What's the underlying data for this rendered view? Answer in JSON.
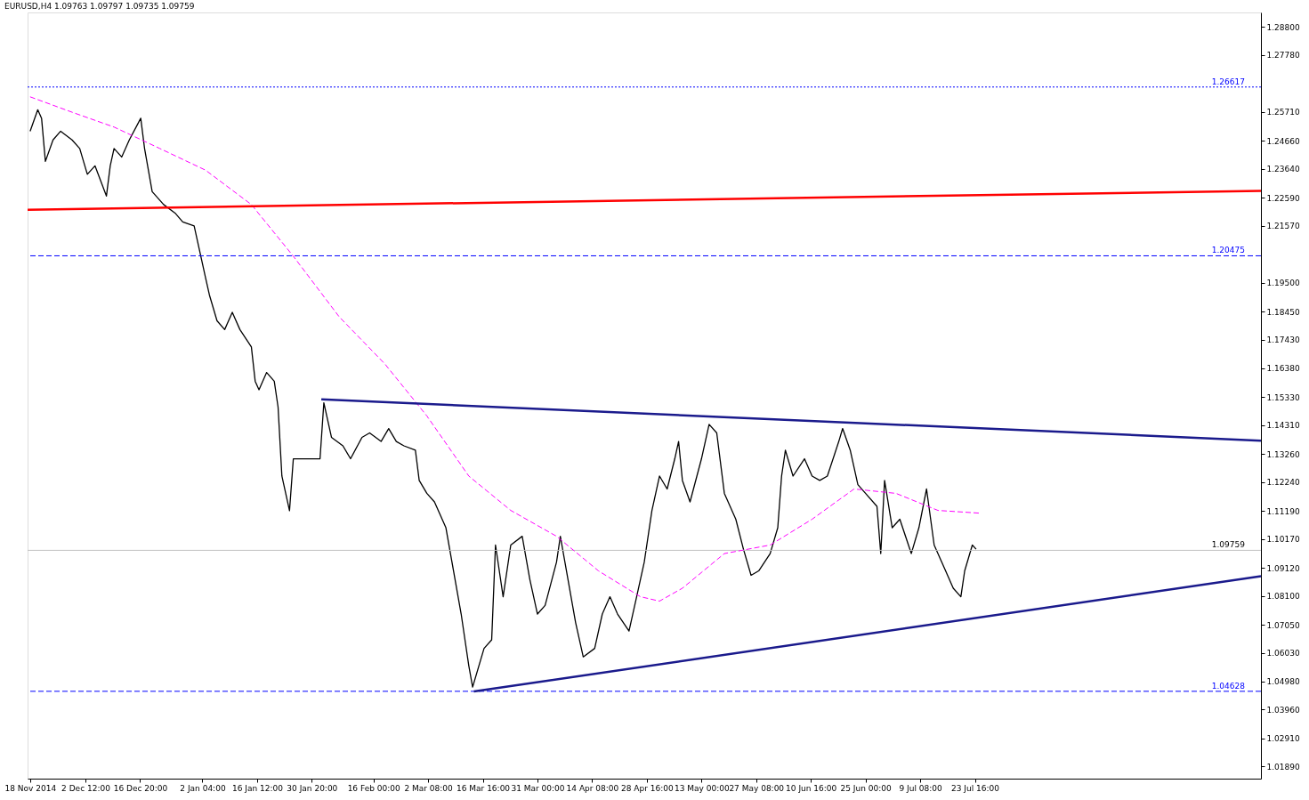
{
  "chart_data": {
    "type": "line",
    "title": "EURUSD,H4  1.09763 1.09797 1.09735 1.09759",
    "xlim": [
      "2014-11-17T08:00",
      "2015-10-06T16:00"
    ],
    "ylim": [
      1.0145,
      1.2933
    ],
    "xticks": [
      {
        "value": "2014-11-18T00:00",
        "label": "18 Nov 2014"
      },
      {
        "value": "2014-12-02T12:00",
        "label": "2 Dec 12:00"
      },
      {
        "value": "2014-12-16T20:00",
        "label": "16 Dec 20:00"
      },
      {
        "value": "2015-01-02T04:00",
        "label": "2 Jan 04:00"
      },
      {
        "value": "2015-01-16T12:00",
        "label": "16 Jan 12:00"
      },
      {
        "value": "2015-01-30T20:00",
        "label": "30 Jan 20:00"
      },
      {
        "value": "2015-02-16T00:00",
        "label": "16 Feb 00:00"
      },
      {
        "value": "2015-03-02T08:00",
        "label": "2 Mar 08:00"
      },
      {
        "value": "2015-03-16T16:00",
        "label": "16 Mar 16:00"
      },
      {
        "value": "2015-03-31T00:00",
        "label": "31 Mar 00:00"
      },
      {
        "value": "2015-04-14T08:00",
        "label": "14 Apr 08:00"
      },
      {
        "value": "2015-04-28T16:00",
        "label": "28 Apr 16:00"
      },
      {
        "value": "2015-05-13T00:00",
        "label": "13 May 00:00"
      },
      {
        "value": "2015-05-27T08:00",
        "label": "27 May 08:00"
      },
      {
        "value": "2015-06-10T16:00",
        "label": "10 Jun 16:00"
      },
      {
        "value": "2015-06-25T00:00",
        "label": "25 Jun 00:00"
      },
      {
        "value": "2015-07-09T08:00",
        "label": "9 Jul 08:00"
      },
      {
        "value": "2015-07-23T16:00",
        "label": "23 Jul 16:00"
      }
    ],
    "yticks": [
      {
        "value": 1.288,
        "label": "1.28800"
      },
      {
        "value": 1.2778,
        "label": "1.27780"
      },
      {
        "value": 1.2571,
        "label": "1.25710"
      },
      {
        "value": 1.2466,
        "label": "1.24660"
      },
      {
        "value": 1.2364,
        "label": "1.23640"
      },
      {
        "value": 1.2259,
        "label": "1.22590"
      },
      {
        "value": 1.2157,
        "label": "1.21570"
      },
      {
        "value": 1.195,
        "label": "1.19500"
      },
      {
        "value": 1.1845,
        "label": "1.18450"
      },
      {
        "value": 1.1743,
        "label": "1.17430"
      },
      {
        "value": 1.1638,
        "label": "1.16380"
      },
      {
        "value": 1.1533,
        "label": "1.15330"
      },
      {
        "value": 1.1431,
        "label": "1.14310"
      },
      {
        "value": 1.1326,
        "label": "1.13260"
      },
      {
        "value": 1.1224,
        "label": "1.12240"
      },
      {
        "value": 1.1119,
        "label": "1.11190"
      },
      {
        "value": 1.1017,
        "label": "1.10170"
      },
      {
        "value": 1.0912,
        "label": "1.09120"
      },
      {
        "value": 1.081,
        "label": "1.08100"
      },
      {
        "value": 1.0705,
        "label": "1.07050"
      },
      {
        "value": 1.0603,
        "label": "1.06030"
      },
      {
        "value": 1.0498,
        "label": "1.04980"
      },
      {
        "value": 1.0396,
        "label": "1.03960"
      },
      {
        "value": 1.0291,
        "label": "1.02910"
      },
      {
        "value": 1.0189,
        "label": "1.01890"
      }
    ],
    "grid": false,
    "series": [
      {
        "color": "#000000",
        "line_style": "solid",
        "x": [
          "2014-11-18",
          "2014-11-20",
          "2014-11-21",
          "2014-11-22",
          "2014-11-24",
          "2014-11-26",
          "2014-11-29",
          "2014-12-01",
          "2014-12-03",
          "2014-12-05",
          "2014-12-08",
          "2014-12-09",
          "2014-12-10",
          "2014-12-12",
          "2014-12-14",
          "2014-12-17",
          "2014-12-18",
          "2014-12-20",
          "2014-12-23",
          "2014-12-26",
          "2014-12-28",
          "2014-12-31",
          "2015-01-02",
          "2015-01-03",
          "2015-01-04",
          "2015-01-06",
          "2015-01-08",
          "2015-01-10",
          "2015-01-12",
          "2015-01-15",
          "2015-01-16",
          "2015-01-17",
          "2015-01-19",
          "2015-01-21",
          "2015-01-22",
          "2015-01-23",
          "2015-01-25",
          "2015-01-26",
          "2015-01-28",
          "2015-01-30",
          "2015-02-02",
          "2015-02-03",
          "2015-02-05",
          "2015-02-08",
          "2015-02-10",
          "2015-02-13",
          "2015-02-15",
          "2015-02-18",
          "2015-02-20",
          "2015-02-22",
          "2015-02-24",
          "2015-02-27",
          "2015-02-28",
          "2015-03-02",
          "2015-03-04",
          "2015-03-07",
          "2015-03-09",
          "2015-03-11",
          "2015-03-13",
          "2015-03-14",
          "2015-03-17",
          "2015-03-19",
          "2015-03-20",
          "2015-03-22",
          "2015-03-24",
          "2015-03-27",
          "2015-03-29",
          "2015-03-31",
          "2015-04-02",
          "2015-04-05",
          "2015-04-06",
          "2015-04-08",
          "2015-04-10",
          "2015-04-12",
          "2015-04-15",
          "2015-04-17",
          "2015-04-19",
          "2015-04-21",
          "2015-04-24",
          "2015-04-26",
          "2015-04-28",
          "2015-04-30",
          "2015-05-02",
          "2015-05-04",
          "2015-05-06",
          "2015-05-07",
          "2015-05-08",
          "2015-05-10",
          "2015-05-13",
          "2015-05-15",
          "2015-05-17",
          "2015-05-19",
          "2015-05-22",
          "2015-05-24",
          "2015-05-26",
          "2015-05-28",
          "2015-05-31",
          "2015-06-02",
          "2015-06-03",
          "2015-06-04",
          "2015-06-06",
          "2015-06-09",
          "2015-06-11",
          "2015-06-13",
          "2015-06-15",
          "2015-06-18",
          "2015-06-19",
          "2015-06-21",
          "2015-06-23",
          "2015-06-25",
          "2015-06-28",
          "2015-06-29",
          "2015-06-30",
          "2015-07-02",
          "2015-07-04",
          "2015-07-07",
          "2015-07-09",
          "2015-07-11",
          "2015-07-13",
          "2015-07-16",
          "2015-07-18",
          "2015-07-20",
          "2015-07-21",
          "2015-07-22",
          "2015-07-23",
          "2015-07-24"
        ],
        "values": [
          1.2501,
          1.2579,
          1.2548,
          1.2391,
          1.2469,
          1.2501,
          1.2469,
          1.2438,
          1.2344,
          1.2375,
          1.2265,
          1.2375,
          1.2438,
          1.2407,
          1.2469,
          1.2548,
          1.2438,
          1.2281,
          1.2234,
          1.2203,
          1.2171,
          1.2156,
          1.203,
          1.1967,
          1.1905,
          1.1811,
          1.1779,
          1.1842,
          1.1779,
          1.1716,
          1.1591,
          1.156,
          1.1623,
          1.1591,
          1.1497,
          1.1246,
          1.112,
          1.1309,
          1.1309,
          1.1309,
          1.1309,
          1.1513,
          1.1387,
          1.1356,
          1.1309,
          1.1387,
          1.1403,
          1.1372,
          1.1419,
          1.1372,
          1.1356,
          1.134,
          1.123,
          1.1183,
          1.1152,
          1.1058,
          1.0901,
          1.0744,
          1.0556,
          1.0478,
          1.0619,
          1.065,
          1.0995,
          1.0807,
          1.0995,
          1.1027,
          1.087,
          1.0744,
          1.0775,
          1.0933,
          1.1027,
          1.087,
          1.0713,
          1.0588,
          1.0619,
          1.0744,
          1.0807,
          1.0744,
          1.0682,
          1.0807,
          1.0933,
          1.112,
          1.1246,
          1.1199,
          1.1309,
          1.1372,
          1.123,
          1.1152,
          1.1309,
          1.1434,
          1.1403,
          1.1183,
          1.1089,
          1.098,
          1.0885,
          1.0901,
          1.0964,
          1.1058,
          1.1246,
          1.134,
          1.1246,
          1.1309,
          1.1246,
          1.123,
          1.1246,
          1.1372,
          1.1419,
          1.134,
          1.1215,
          1.1183,
          1.1136,
          1.0964,
          1.123,
          1.1058,
          1.1089,
          1.0964,
          1.1058,
          1.1199,
          1.0995,
          1.0901,
          1.0838,
          1.0807,
          1.0901,
          1.0948,
          1.0995,
          1.098
        ]
      },
      {
        "color": "#ff00ff",
        "line_style": "dashed",
        "x": [
          "2014-11-18",
          "2014-11-29",
          "2014-12-10",
          "2014-12-22",
          "2015-01-03",
          "2015-01-15",
          "2015-01-26",
          "2015-02-07",
          "2015-02-19",
          "2015-03-02",
          "2015-03-13",
          "2015-03-24",
          "2015-04-05",
          "2015-04-16",
          "2015-04-27",
          "2015-05-02",
          "2015-05-08",
          "2015-05-19",
          "2015-05-31",
          "2015-06-11",
          "2015-06-22",
          "2015-07-03",
          "2015-07-14",
          "2015-07-25"
        ],
        "values": [
          1.2626,
          1.257,
          1.2516,
          1.2438,
          1.2359,
          1.2234,
          1.2046,
          1.1826,
          1.1654,
          1.1465,
          1.1246,
          1.1121,
          1.1027,
          1.0901,
          1.0807,
          1.0791,
          1.0838,
          1.0964,
          1.0995,
          1.1089,
          1.1199,
          1.1183,
          1.1121,
          1.1111
        ]
      },
      {
        "color": "#ff0000",
        "line_style": "solid",
        "x": [
          "2014-11-17T08:00",
          "2015-10-06T16:00"
        ],
        "values": [
          1.2215,
          1.2284
        ]
      },
      {
        "color": "#1a1a8c",
        "line_style": "solid",
        "x": [
          "2015-02-02T08:00",
          "2015-10-06T16:00"
        ],
        "values": [
          1.1525,
          1.1375
        ]
      },
      {
        "color": "#1a1a8c",
        "line_style": "solid",
        "x": [
          "2015-03-14T08:00",
          "2015-10-06T16:00"
        ],
        "values": [
          1.0462,
          1.0882
        ]
      }
    ],
    "ref_lines": [
      {
        "axis": "y",
        "value": 1.26617,
        "label": "1.26617",
        "color": "#0000ff",
        "line_style": "dotted"
      },
      {
        "axis": "y",
        "value": 1.20475,
        "label": "1.20475",
        "color": "#0000ff",
        "line_style": "dashed"
      },
      {
        "axis": "y",
        "value": 1.09759,
        "label": "1.09759",
        "color": "#c0c0c0",
        "line_style": "solid"
      },
      {
        "axis": "y",
        "value": 1.04628,
        "label": "1.04628",
        "color": "#0000ff",
        "line_style": "dashed"
      }
    ]
  }
}
